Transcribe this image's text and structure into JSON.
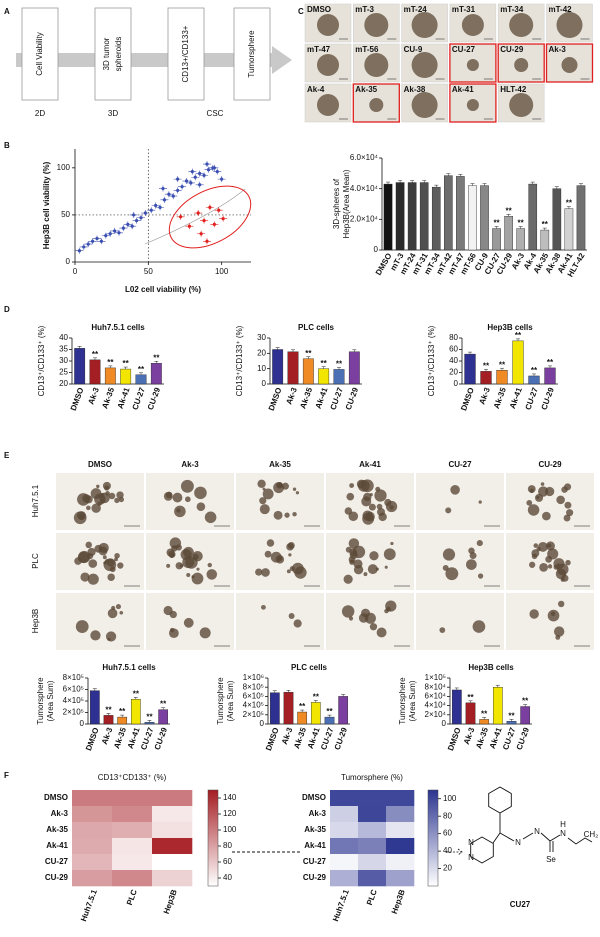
{
  "panel_labels": [
    "A",
    "B",
    "C",
    "D",
    "E",
    "F"
  ],
  "flow": {
    "steps": [
      [
        "Cell Viability"
      ],
      [
        "3D tumor",
        "spheroids"
      ],
      [
        "CD13+/CD133+"
      ],
      [
        "Tumorsphere"
      ]
    ],
    "stages": [
      "2D",
      "3D",
      "CSC"
    ]
  },
  "spheroid_images": {
    "labels": [
      "DMSO",
      "mT-3",
      "mT-24",
      "mT-31",
      "mT-34",
      "mT-42",
      "mT-47",
      "mT-56",
      "CU-9",
      "CU-27",
      "CU-29",
      "Ak-3",
      "Ak-4",
      "Ak-35",
      "Ak-38",
      "Ak-41",
      "HLT-42"
    ],
    "highlighted": [
      false,
      false,
      false,
      false,
      false,
      false,
      false,
      false,
      false,
      true,
      true,
      true,
      false,
      true,
      false,
      true,
      false
    ],
    "highlight_color": "#e02020"
  },
  "tumorsphere_images": {
    "columns": [
      "DMSO",
      "Ak-3",
      "Ak-35",
      "Ak-41",
      "CU-27",
      "CU-29"
    ],
    "rows": [
      "Huh7.5.1",
      "PLC",
      "Hep3B"
    ]
  },
  "structure": {
    "name": "CU27",
    "atoms": [
      "N",
      "N",
      "N",
      "N",
      "Se",
      "N",
      "H",
      "CH₂"
    ]
  },
  "chart_data": [
    {
      "type": "scatter",
      "x_label": "L02 cell viability (%)",
      "y_label": "Hep3B cell viability  (%)",
      "xlim": [
        0,
        120
      ],
      "ylim": [
        0,
        120
      ],
      "xticks": [
        0,
        50,
        100
      ],
      "yticks": [
        0,
        50,
        100
      ],
      "reference_lines": {
        "x": 50,
        "y": 50
      },
      "series": [
        {
          "color": "#3b4fb0",
          "x": [
            3,
            6,
            9,
            12,
            15,
            18,
            21,
            24,
            27,
            30,
            33,
            36,
            39,
            42,
            45,
            48,
            52,
            55,
            58,
            61,
            64,
            67,
            70,
            73,
            76,
            79,
            82,
            85,
            88,
            91,
            94,
            97,
            100,
            60,
            70,
            80,
            90,
            95,
            40,
            85
          ],
          "values": [
            12,
            16,
            19,
            22,
            25,
            22,
            28,
            30,
            33,
            31,
            36,
            40,
            38,
            44,
            47,
            52,
            55,
            60,
            58,
            66,
            72,
            70,
            76,
            80,
            86,
            84,
            90,
            94,
            92,
            98,
            100,
            96,
            88,
            78,
            88,
            96,
            104,
            100,
            50,
            82
          ]
        },
        {
          "color": "#e0201e",
          "x": [
            72,
            78,
            84,
            88,
            92,
            95,
            98,
            101,
            86,
            90
          ],
          "values": [
            48,
            38,
            52,
            44,
            58,
            40,
            55,
            46,
            30,
            22
          ]
        }
      ]
    },
    {
      "type": "bar",
      "y_label": [
        "3D-spheres of",
        "Hep3B(Area Mean)"
      ],
      "categories": [
        "DMSO",
        "mT-3",
        "mT-24",
        "mT-31",
        "mT-34",
        "mT-42",
        "mT-47",
        "mT-56",
        "CU-9",
        "CU-27",
        "CU-29",
        "Ak-3",
        "Ak-4",
        "Ak-35",
        "Ak-38",
        "Ak-41",
        "HLT-42"
      ],
      "values": [
        43000,
        44000,
        44000,
        44000,
        41000,
        48500,
        48000,
        42000,
        42000,
        14000,
        22000,
        14000,
        43000,
        13000,
        40000,
        27000,
        42000
      ],
      "significance": [
        null,
        null,
        null,
        null,
        null,
        null,
        null,
        null,
        null,
        "**",
        "**",
        "**",
        null,
        "**",
        null,
        "**",
        null
      ],
      "colors": [
        "#111111",
        "#2a2a2a",
        "#3d3d3d",
        "#505050",
        "#5e5e5e",
        "#6c6c6c",
        "#7a7a7a",
        "#f2f2f2",
        "#888888",
        "#9a9a9a",
        "#a4a4a4",
        "#b0b0b0",
        "#6a6a6a",
        "#bdbdbd",
        "#555555",
        "#d2d2d2",
        "#707070"
      ],
      "ylim": [
        0,
        60000
      ],
      "yticks": [
        0,
        {
          "value": 20000,
          "label": "2.0×10⁴"
        },
        {
          "value": 40000,
          "label": "4.0×10⁴"
        },
        {
          "value": 60000,
          "label": "6.0×10⁴"
        }
      ]
    },
    {
      "type": "bar",
      "title": "Huh7.5.1 cells",
      "y_label": [
        "CD13⁺/CD133⁺ (%)"
      ],
      "categories": [
        "DMSO",
        "Ak-3",
        "Ak-35",
        "Ak-41",
        "CU-27",
        "CU-29"
      ],
      "values": [
        35.5,
        30.5,
        27,
        26.5,
        24,
        29
      ],
      "significance": [
        null,
        "**",
        "**",
        "**",
        "**",
        "**"
      ],
      "colors": [
        "#2e3192",
        "#a31f24",
        "#f08a24",
        "#f2e500",
        "#4a6fb5",
        "#7b3fa0"
      ],
      "ylim": [
        20,
        40
      ],
      "yticks": [
        20,
        25,
        30,
        35,
        40
      ]
    },
    {
      "type": "bar",
      "title": "PLC cells",
      "y_label": [
        "CD13⁺/CD133⁺ (%)"
      ],
      "categories": [
        "DMSO",
        "Ak-3",
        "Ak-35",
        "Ak-41",
        "CU-27",
        "CU-29"
      ],
      "values": [
        22.5,
        21,
        16.5,
        10,
        9.5,
        21
      ],
      "significance": [
        null,
        null,
        "**",
        "**",
        "**",
        null
      ],
      "colors": [
        "#2e3192",
        "#a31f24",
        "#f08a24",
        "#f2e500",
        "#4a6fb5",
        "#7b3fa0"
      ],
      "ylim": [
        0,
        30
      ],
      "yticks": [
        0,
        10,
        20,
        30
      ]
    },
    {
      "type": "bar",
      "title": "Hep3B cells",
      "y_label": [
        "CD13⁺/CD133⁺ (%)"
      ],
      "categories": [
        "DMSO",
        "Ak-3",
        "Ak-35",
        "Ak-41",
        "CU-27",
        "CU-29"
      ],
      "values": [
        52,
        22,
        24,
        75,
        14,
        28
      ],
      "significance": [
        null,
        "**",
        "**",
        "**",
        "**",
        "**"
      ],
      "colors": [
        "#2e3192",
        "#a31f24",
        "#f08a24",
        "#f2e500",
        "#4a6fb5",
        "#7b3fa0"
      ],
      "ylim": [
        0,
        80
      ],
      "yticks": [
        0,
        20,
        40,
        60,
        80
      ]
    },
    {
      "type": "bar",
      "title": "Huh7.5.1 cells",
      "y_label": [
        "Tumorsphere",
        "(Area Sum)"
      ],
      "categories": [
        "DMSO",
        "Ak-3",
        "Ak-35",
        "Ak-41",
        "CU-27",
        "CU-29"
      ],
      "values": [
        580000,
        150000,
        120000,
        430000,
        30000,
        250000
      ],
      "significance": [
        null,
        "**",
        "**",
        "**",
        "**",
        "**"
      ],
      "colors": [
        "#2e3192",
        "#a31f24",
        "#f08a24",
        "#f2e500",
        "#4a6fb5",
        "#7b3fa0"
      ],
      "ylim": [
        0,
        800000
      ],
      "yticks": [
        0,
        {
          "value": 200000,
          "label": "2×10⁵"
        },
        {
          "value": 400000,
          "label": "4×10⁵"
        },
        {
          "value": 600000,
          "label": "6×10⁵"
        },
        {
          "value": 800000,
          "label": "8×10⁵"
        }
      ]
    },
    {
      "type": "bar",
      "title": "PLC cells",
      "y_label": [
        "Tumorsphere",
        "(Area Sum)"
      ],
      "categories": [
        "DMSO",
        "Ak-3",
        "Ak-35",
        "Ak-41",
        "CU-27",
        "CU-29"
      ],
      "values": [
        680000,
        690000,
        260000,
        470000,
        150000,
        600000
      ],
      "significance": [
        null,
        null,
        "**",
        "**",
        "**",
        null
      ],
      "colors": [
        "#2e3192",
        "#a31f24",
        "#f08a24",
        "#f2e500",
        "#4a6fb5",
        "#7b3fa0"
      ],
      "ylim": [
        0,
        1000000
      ],
      "yticks": [
        0,
        {
          "value": 200000,
          "label": "2×10⁵"
        },
        {
          "value": 400000,
          "label": "4×10⁵"
        },
        {
          "value": 600000,
          "label": "6×10⁵"
        },
        {
          "value": 800000,
          "label": "8×10⁵"
        },
        {
          "value": 1000000,
          "label": "1×10⁶"
        }
      ]
    },
    {
      "type": "bar",
      "title": "Hep3B cells",
      "y_label": [
        "Tumorsphere",
        "(Area Sum)"
      ],
      "categories": [
        "DMSO",
        "Ak-3",
        "Ak-35",
        "Ak-41",
        "CU-27",
        "CU-29"
      ],
      "values": [
        74000,
        46000,
        10000,
        80000,
        6000,
        38000
      ],
      "significance": [
        null,
        "**",
        "**",
        null,
        "**",
        "**"
      ],
      "colors": [
        "#2e3192",
        "#a31f24",
        "#f08a24",
        "#f2e500",
        "#4a6fb5",
        "#7b3fa0"
      ],
      "ylim": [
        0,
        100000
      ],
      "yticks": [
        0,
        {
          "value": 20000,
          "label": "2×10⁴"
        },
        {
          "value": 40000,
          "label": "4×10⁴"
        },
        {
          "value": 60000,
          "label": "6×10⁴"
        },
        {
          "value": 80000,
          "label": "8×10⁴"
        },
        {
          "value": 100000,
          "label": "1×10⁵"
        }
      ]
    },
    {
      "type": "heatmap",
      "title": "CD13⁺CD133⁺ (%)",
      "rows": [
        "DMSO",
        "Ak-3",
        "Ak-35",
        "Ak-41",
        "CU-27",
        "CU-29"
      ],
      "columns": [
        "Huh7.5.1",
        "PLC",
        "Hep3B"
      ],
      "values": [
        [
          100,
          100,
          100
        ],
        [
          86,
          93,
          42
        ],
        [
          76,
          73,
          46
        ],
        [
          75,
          44,
          144
        ],
        [
          68,
          42,
          27
        ],
        [
          82,
          93,
          54
        ]
      ],
      "color": "#a51d23",
      "zlim": [
        30,
        150
      ],
      "zticks": [
        40,
        60,
        80,
        100,
        120,
        140
      ]
    },
    {
      "type": "heatmap",
      "title": "Tumorsphere (%)",
      "rows": [
        "DMSO",
        "Ak-3",
        "Ak-35",
        "Ak-41",
        "CU-27",
        "CU-29"
      ],
      "columns": [
        "Huh7.5.1",
        "PLC",
        "Hep3B"
      ],
      "values": [
        [
          100,
          100,
          100
        ],
        [
          26,
          101,
          62
        ],
        [
          21,
          38,
          14
        ],
        [
          74,
          69,
          108
        ],
        [
          5,
          22,
          8
        ],
        [
          43,
          88,
          51
        ]
      ],
      "color": "#2c3590",
      "zlim": [
        0,
        110
      ],
      "zticks": [
        20,
        40,
        60,
        80,
        100
      ]
    }
  ]
}
